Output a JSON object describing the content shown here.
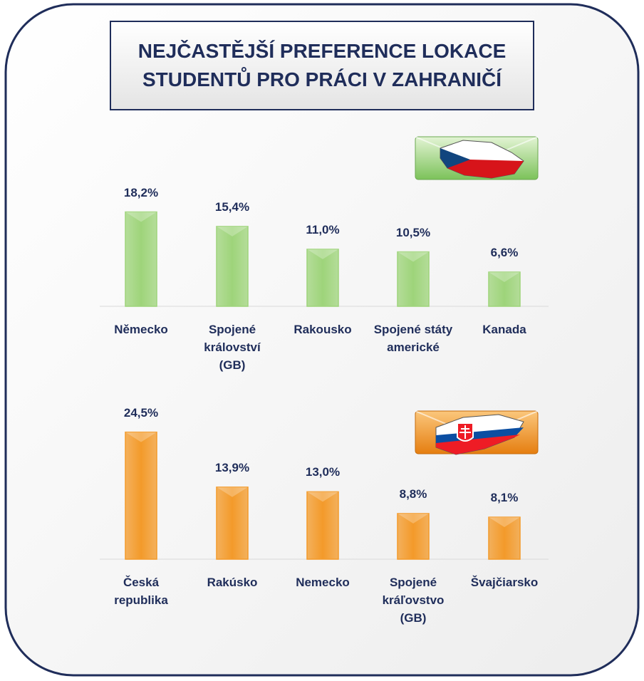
{
  "title": "NEJČASTĚJŠÍ PREFERENCE LOKACE STUDENTŮ PRO PRÁCI V ZAHRANIČÍ",
  "chart_data": [
    {
      "type": "bar",
      "categories": [
        "Německo",
        "Spojené království (GB)",
        "Rakousko",
        "Spojené státy americké",
        "Kanada"
      ],
      "values": [
        18.2,
        15.4,
        11.0,
        10.5,
        6.6
      ],
      "value_labels": [
        "18,2%",
        "15,4%",
        "11,0%",
        "10,5%",
        "6,6%"
      ],
      "color": "#9ed47a"
    },
    {
      "type": "bar",
      "categories": [
        "Česká republika",
        "Rakúsko",
        "Nemecko",
        "Spojené kráľovstvo (GB)",
        "Švajčiarsko"
      ],
      "values": [
        24.5,
        13.9,
        13.0,
        8.8,
        8.1
      ],
      "value_labels": [
        "24,5%",
        "13,9%",
        "13,0%",
        "8,8%",
        "8,1%"
      ],
      "color": "#f39a2a"
    }
  ]
}
